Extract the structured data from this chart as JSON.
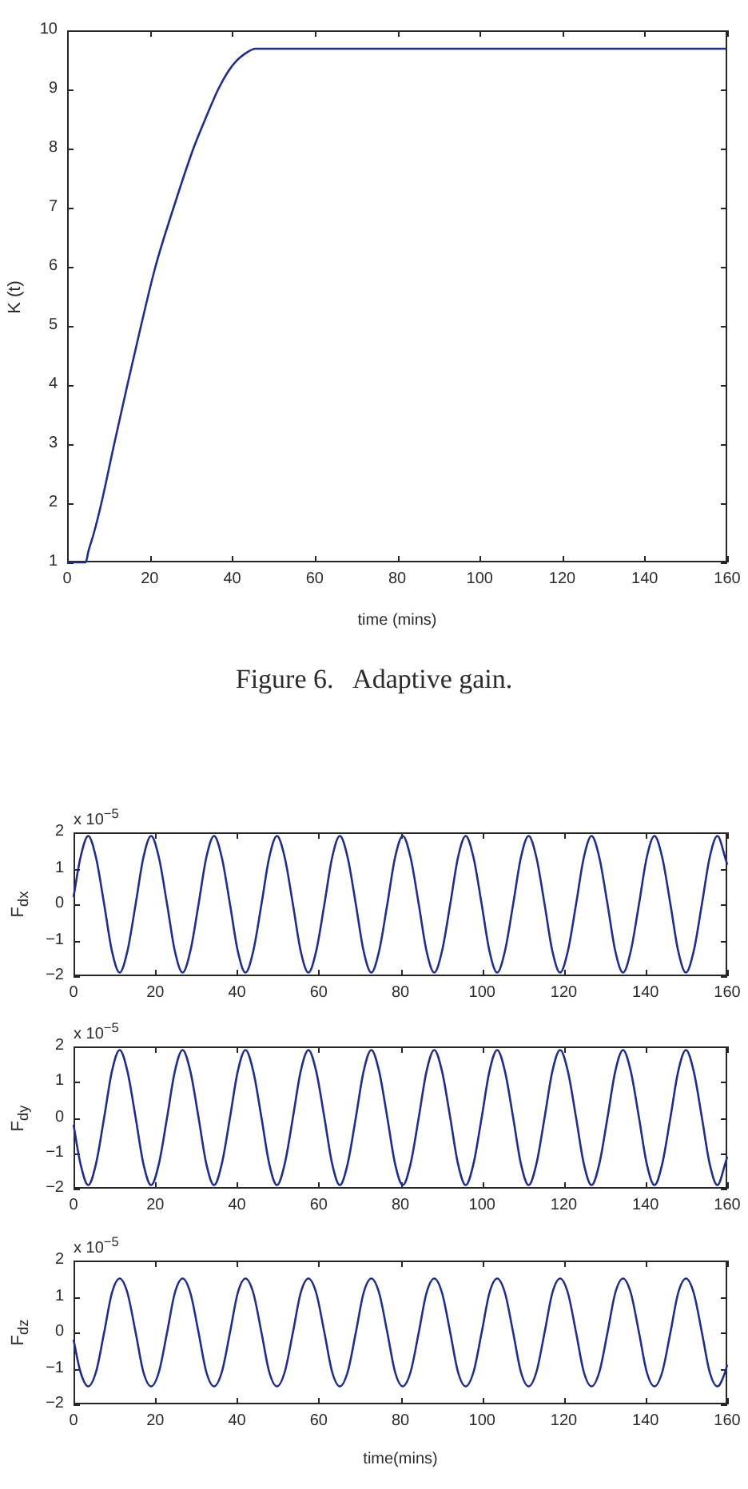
{
  "chart_data": [
    {
      "type": "line",
      "xlabel": "time (mins)",
      "ylabel": "K (t)",
      "annotations": [
        "Figure 6.   Adaptive gain."
      ],
      "x": [
        0,
        4.5,
        5.2,
        6.5,
        8.3,
        11.4,
        14.6,
        17.9,
        21.4,
        25.8,
        30.6,
        33.5,
        36.6,
        39,
        41,
        43,
        45.7,
        160
      ],
      "series": [
        {
          "color": "#1f2e8a",
          "values": [
            1,
            1,
            1.2,
            1.5,
            2,
            3,
            4,
            5,
            6,
            7,
            8,
            8.5,
            9,
            9.3,
            9.48,
            9.6,
            9.69,
            9.69
          ]
        }
      ],
      "xlim": [
        0,
        160
      ],
      "xticks": [
        0,
        20,
        40,
        60,
        80,
        100,
        120,
        140,
        160
      ],
      "ylim": [
        1,
        10
      ],
      "yticks": [
        1,
        2,
        3,
        4,
        5,
        6,
        7,
        8,
        9,
        10
      ]
    },
    {
      "type": "line",
      "ylabel": "F$_{dx}$",
      "annotations": [
        "x 10$^{−5}$"
      ],
      "x": [
        0,
        1.7,
        3.6,
        5.5,
        7.5,
        9.4,
        11.3,
        13.2,
        15.2,
        17.1,
        19,
        20.9,
        22.9,
        24.8,
        26.7,
        28.6,
        30.6,
        32.5,
        34.4,
        36.3,
        38.3,
        40.2,
        42.1,
        44,
        46,
        47.9,
        49.8,
        51.7,
        53.7,
        55.6,
        57.5,
        59.4,
        61.4,
        63.3,
        65.2,
        67.1,
        69.1,
        71,
        72.9,
        74.8,
        76.8,
        78.7,
        80.6,
        82.5,
        84.5,
        86.4,
        88.3,
        90.2,
        92.2,
        94.1,
        96,
        97.9,
        99.9,
        101.8,
        103.7,
        105.6,
        107.6,
        109.5,
        111.4,
        113.3,
        115.3,
        117.2,
        119.1,
        121,
        123,
        124.9,
        126.8,
        128.7,
        130.7,
        132.6,
        134.5,
        136.4,
        138.4,
        140.3,
        142.2,
        144.1,
        146.1,
        148,
        149.9,
        151.8,
        153.8,
        155.7,
        157.6,
        159.5,
        160
      ],
      "series": [
        {
          "color": "#1f2e8a",
          "values": [
            0.2,
            1.3,
            1.9,
            1.3,
            0,
            -1.3,
            -1.9,
            -1.3,
            0,
            1.3,
            1.9,
            1.3,
            0,
            -1.3,
            -1.9,
            -1.3,
            0,
            1.3,
            1.9,
            1.3,
            0,
            -1.3,
            -1.9,
            -1.3,
            0,
            1.3,
            1.9,
            1.3,
            0,
            -1.3,
            -1.9,
            -1.3,
            0,
            1.3,
            1.9,
            1.3,
            0,
            -1.3,
            -1.9,
            -1.3,
            0,
            1.3,
            1.9,
            1.3,
            0,
            -1.3,
            -1.9,
            -1.3,
            0,
            1.3,
            1.9,
            1.3,
            0,
            -1.3,
            -1.9,
            -1.3,
            0,
            1.3,
            1.9,
            1.3,
            0,
            -1.3,
            -1.9,
            -1.3,
            0,
            1.3,
            1.9,
            1.3,
            0,
            -1.3,
            -1.9,
            -1.3,
            0,
            1.3,
            1.9,
            1.3,
            0,
            -1.3,
            -1.9,
            -1.3,
            0,
            1.3,
            1.9,
            1.3,
            1.1
          ]
        }
      ],
      "xlim": [
        0,
        160
      ],
      "xticks": [
        0,
        20,
        40,
        60,
        80,
        100,
        120,
        140,
        160
      ],
      "ylim": [
        -2,
        2
      ],
      "yticks": [
        -2,
        -1,
        0,
        1,
        2
      ]
    },
    {
      "type": "line",
      "ylabel": "F$_{dy}$",
      "annotations": [
        "x 10$^{−5}$"
      ],
      "x": [
        0,
        1.7,
        3.6,
        5.5,
        7.5,
        9.4,
        11.3,
        13.2,
        15.2,
        17.1,
        19,
        20.9,
        22.9,
        24.8,
        26.7,
        28.6,
        30.6,
        32.5,
        34.4,
        36.3,
        38.3,
        40.2,
        42.1,
        44,
        46,
        47.9,
        49.8,
        51.7,
        53.7,
        55.6,
        57.5,
        59.4,
        61.4,
        63.3,
        65.2,
        67.1,
        69.1,
        71,
        72.9,
        74.8,
        76.8,
        78.7,
        80.6,
        82.5,
        84.5,
        86.4,
        88.3,
        90.2,
        92.2,
        94.1,
        96,
        97.9,
        99.9,
        101.8,
        103.7,
        105.6,
        107.6,
        109.5,
        111.4,
        113.3,
        115.3,
        117.2,
        119.1,
        121,
        123,
        124.9,
        126.8,
        128.7,
        130.7,
        132.6,
        134.5,
        136.4,
        138.4,
        140.3,
        142.2,
        144.1,
        146.1,
        148,
        149.9,
        151.8,
        153.8,
        155.7,
        157.6,
        159.5,
        160
      ],
      "series": [
        {
          "color": "#1f2e8a",
          "values": [
            -0.2,
            -1.3,
            -1.9,
            -1.3,
            0,
            1.3,
            1.9,
            1.3,
            0,
            -1.3,
            -1.9,
            -1.3,
            0,
            1.3,
            1.9,
            1.3,
            0,
            -1.3,
            -1.9,
            -1.3,
            0,
            1.3,
            1.9,
            1.3,
            0,
            -1.3,
            -1.9,
            -1.3,
            0,
            1.3,
            1.9,
            1.3,
            0,
            -1.3,
            -1.9,
            -1.3,
            0,
            1.3,
            1.9,
            1.3,
            0,
            -1.3,
            -1.9,
            -1.3,
            0,
            1.3,
            1.9,
            1.3,
            0,
            -1.3,
            -1.9,
            -1.3,
            0,
            1.3,
            1.9,
            1.3,
            0,
            -1.3,
            -1.9,
            -1.3,
            0,
            1.3,
            1.9,
            1.3,
            0,
            -1.3,
            -1.9,
            -1.3,
            0,
            1.3,
            1.9,
            1.3,
            0,
            -1.3,
            -1.9,
            -1.3,
            0,
            1.3,
            1.9,
            1.3,
            0,
            -1.3,
            -1.9,
            -1.3,
            -1.1
          ]
        }
      ],
      "xlim": [
        0,
        160
      ],
      "xticks": [
        0,
        20,
        40,
        60,
        80,
        100,
        120,
        140,
        160
      ],
      "ylim": [
        -2,
        2
      ],
      "yticks": [
        -2,
        -1,
        0,
        1,
        2
      ]
    },
    {
      "type": "line",
      "xlabel": "time(mins)",
      "ylabel": "F$_{dz}$",
      "annotations": [
        "x 10$^{−5}$"
      ],
      "x": [
        0,
        1.7,
        3.6,
        5.5,
        7.5,
        9.4,
        11.3,
        13.2,
        15.2,
        17.1,
        19,
        20.9,
        22.9,
        24.8,
        26.7,
        28.6,
        30.6,
        32.5,
        34.4,
        36.3,
        38.3,
        40.2,
        42.1,
        44,
        46,
        47.9,
        49.8,
        51.7,
        53.7,
        55.6,
        57.5,
        59.4,
        61.4,
        63.3,
        65.2,
        67.1,
        69.1,
        71,
        72.9,
        74.8,
        76.8,
        78.7,
        80.6,
        82.5,
        84.5,
        86.4,
        88.3,
        90.2,
        92.2,
        94.1,
        96,
        97.9,
        99.9,
        101.8,
        103.7,
        105.6,
        107.6,
        109.5,
        111.4,
        113.3,
        115.3,
        117.2,
        119.1,
        121,
        123,
        124.9,
        126.8,
        128.7,
        130.7,
        132.6,
        134.5,
        136.4,
        138.4,
        140.3,
        142.2,
        144.1,
        146.1,
        148,
        149.9,
        151.8,
        153.8,
        155.7,
        157.6,
        159.5,
        160
      ],
      "series": [
        {
          "color": "#1f2e8a",
          "values": [
            -0.2,
            -1.1,
            -1.5,
            -1.1,
            0,
            1.1,
            1.5,
            1.1,
            0,
            -1.1,
            -1.5,
            -1.1,
            0,
            1.1,
            1.5,
            1.1,
            0,
            -1.1,
            -1.5,
            -1.1,
            0,
            1.1,
            1.5,
            1.1,
            0,
            -1.1,
            -1.5,
            -1.1,
            0,
            1.1,
            1.5,
            1.1,
            0,
            -1.1,
            -1.5,
            -1.1,
            0,
            1.1,
            1.5,
            1.1,
            0,
            -1.1,
            -1.5,
            -1.1,
            0,
            1.1,
            1.5,
            1.1,
            0,
            -1.1,
            -1.5,
            -1.1,
            0,
            1.1,
            1.5,
            1.1,
            0,
            -1.1,
            -1.5,
            -1.1,
            0,
            1.1,
            1.5,
            1.1,
            0,
            -1.1,
            -1.5,
            -1.1,
            0,
            1.1,
            1.5,
            1.1,
            0,
            -1.1,
            -1.5,
            -1.1,
            0,
            1.1,
            1.5,
            1.1,
            0,
            -1.1,
            -1.5,
            -1.1,
            -0.9
          ]
        }
      ],
      "xlim": [
        0,
        160
      ],
      "xticks": [
        0,
        20,
        40,
        60,
        80,
        100,
        120,
        140,
        160
      ],
      "ylim": [
        -2,
        2
      ],
      "yticks": [
        -2,
        -1,
        0,
        1,
        2
      ]
    }
  ]
}
